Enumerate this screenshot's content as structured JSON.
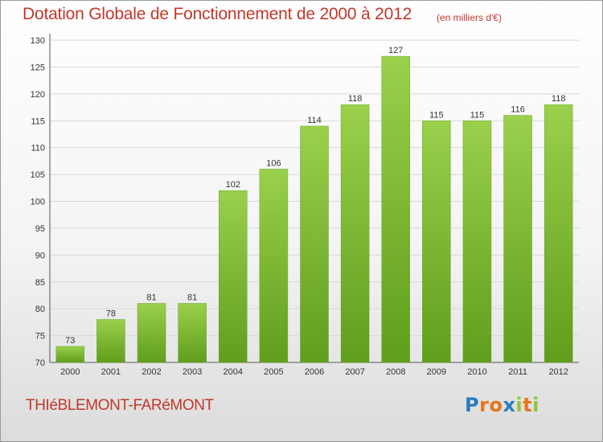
{
  "chart_data": {
    "type": "bar",
    "title": "Dotation Globale de Fonctionnement de 2000 à 2012",
    "subtitle": "(en milliers d'€)",
    "categories": [
      "2000",
      "2001",
      "2002",
      "2003",
      "2004",
      "2005",
      "2006",
      "2007",
      "2008",
      "2009",
      "2010",
      "2011",
      "2012"
    ],
    "values": [
      73,
      78,
      81,
      81,
      102,
      106,
      114,
      118,
      127,
      115,
      115,
      116,
      118
    ],
    "data_labels": [
      "73",
      "78",
      "81",
      "81",
      "102",
      "106",
      "114",
      "118",
      "127",
      "115",
      "115",
      "116",
      "118"
    ],
    "ylim": [
      70,
      130
    ],
    "yticks": [
      70,
      75,
      80,
      85,
      90,
      95,
      100,
      105,
      110,
      115,
      120,
      125,
      130
    ],
    "ytick_labels": [
      "70",
      "75",
      "80",
      "85",
      "90",
      "95",
      "100",
      "105",
      "110",
      "115",
      "120",
      "125",
      "130"
    ],
    "xlabel": "",
    "ylabel": "",
    "grid": true,
    "bar_color": "#8cc63f",
    "bar_color_dark": "#5a9a1a"
  },
  "footer": {
    "commune": "THIéBLEMONT-FARéMONT",
    "logo_letters": [
      "P",
      "r",
      "o",
      "x",
      "i",
      "t",
      "i"
    ],
    "logo_colors": [
      "#2b7bbf",
      "#e8741c",
      "#e8741c",
      "#2b7bbf",
      "#8cc63f",
      "#e8741c",
      "#8cc63f"
    ]
  },
  "colors": {
    "accent": "#c0392b"
  }
}
